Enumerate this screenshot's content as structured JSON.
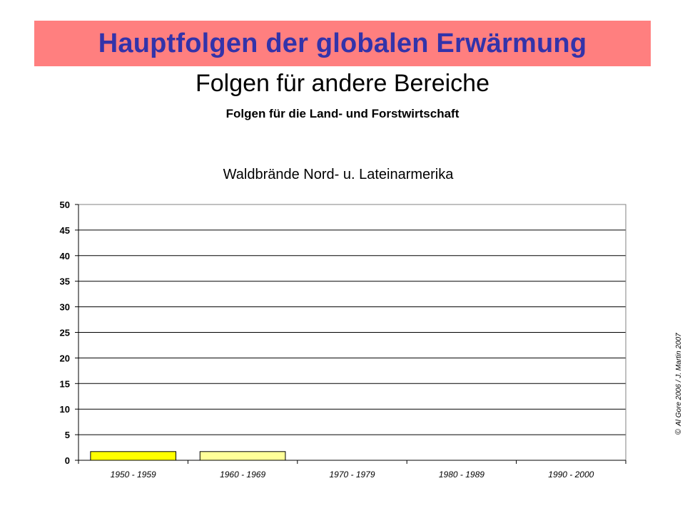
{
  "header": {
    "title": "Hauptfolgen der globalen Erwärmung",
    "subtitle": "Folgen für andere Bereiche",
    "subsubtitle": "Folgen für die Land- und Forstwirtschaft"
  },
  "chart_data": {
    "type": "bar",
    "title": "Waldbrände Nord- u. Lateinarmerika",
    "xlabel": "",
    "ylabel": "",
    "categories": [
      "1950 - 1959",
      "1960 - 1969",
      "1970 - 1979",
      "1980 - 1989",
      "1990 - 2000"
    ],
    "values": [
      1.7,
      1.7,
      0,
      0,
      0
    ],
    "bar_colors": [
      "#ffff00",
      "#ffff99",
      "#ffffff",
      "#ffffff",
      "#ffffff"
    ],
    "ylim": [
      0,
      50
    ],
    "yticks": [
      0,
      5,
      10,
      15,
      20,
      25,
      30,
      35,
      40,
      45,
      50
    ],
    "grid": true,
    "legend": "none"
  },
  "footer": {
    "copyright_symbol": "©",
    "copyright_text": "Al Gore 2006  /  J. Martin 2007"
  },
  "colors": {
    "banner_background": "#ff7f7f",
    "banner_text": "#3333aa"
  }
}
